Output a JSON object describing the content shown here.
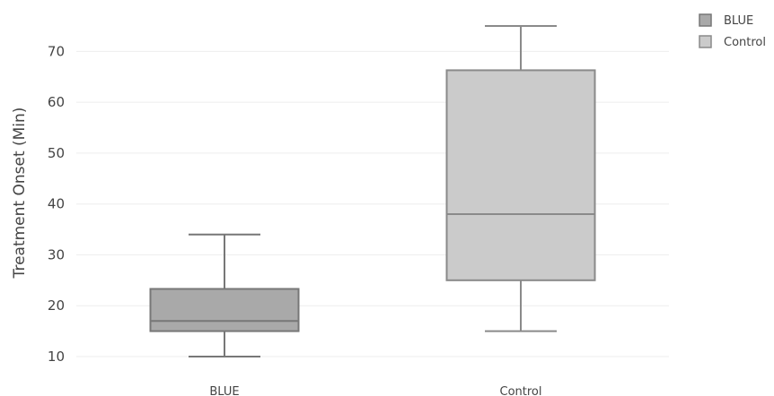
{
  "chart_data": {
    "type": "box",
    "xlabel": "",
    "ylabel": "Treatment Onset (Min)",
    "ylim": [
      7,
      78
    ],
    "yticks": [
      10,
      20,
      30,
      40,
      50,
      60,
      70
    ],
    "grid": true,
    "legend_position": "top-right",
    "series": [
      {
        "name": "BLUE",
        "category": "BLUE",
        "min": 10,
        "q1": 15,
        "median": 17,
        "q3": 23.3,
        "max": 34,
        "fill": "#a9a9a9",
        "stroke": "#777777"
      },
      {
        "name": "Control",
        "category": "Control",
        "min": 15,
        "q1": 25,
        "median": 38,
        "q3": 66.3,
        "max": 75,
        "fill": "#cbcbcb",
        "stroke": "#8a8a8a"
      }
    ]
  }
}
